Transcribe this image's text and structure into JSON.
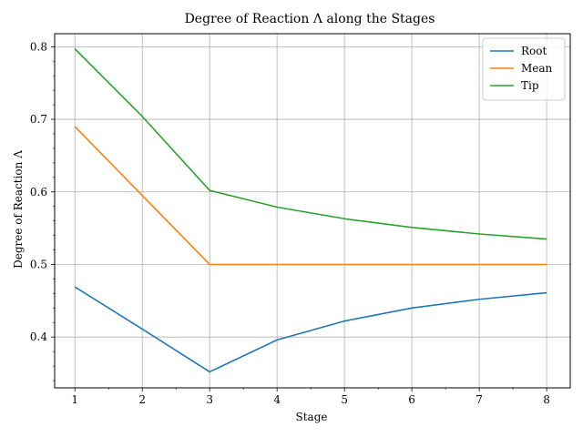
{
  "chart_data": {
    "type": "line",
    "title": "Degree of Reaction Λ along the Stages",
    "xlabel": "Stage",
    "ylabel": "Degree of Reaction Λ",
    "x": [
      1,
      2,
      3,
      4,
      5,
      6,
      7,
      8
    ],
    "xlim": [
      0.7,
      8.35
    ],
    "ylim": [
      0.33,
      0.818
    ],
    "xticks": [
      "1",
      "2",
      "3",
      "4",
      "5",
      "6",
      "7",
      "8"
    ],
    "yticks": [
      "0.4",
      "0.5",
      "0.6",
      "0.7",
      "0.8"
    ],
    "grid": true,
    "legend_position": "top-right",
    "series": [
      {
        "name": "Root",
        "color": "#1f77b4",
        "values": [
          0.469,
          0.411,
          0.352,
          0.396,
          0.422,
          0.44,
          0.452,
          0.461
        ]
      },
      {
        "name": "Mean",
        "color": "#ff7f0e",
        "values": [
          0.69,
          0.595,
          0.5,
          0.5,
          0.5,
          0.5,
          0.5,
          0.5
        ]
      },
      {
        "name": "Tip",
        "color": "#2ca02c",
        "values": [
          0.797,
          0.704,
          0.602,
          0.579,
          0.563,
          0.551,
          0.542,
          0.535
        ]
      }
    ]
  }
}
